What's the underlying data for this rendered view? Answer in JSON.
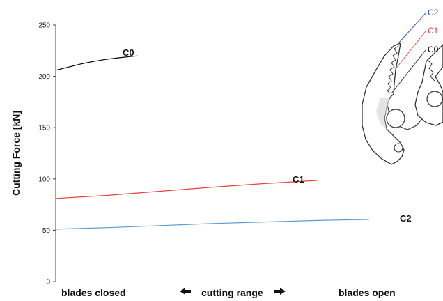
{
  "chart_data": {
    "type": "line",
    "title": "",
    "ylabel": "Cutting Force [kN]",
    "xlabel": "",
    "ylim": [
      0,
      250
    ],
    "yticks": [
      0,
      50,
      100,
      150,
      200,
      250
    ],
    "x_range": [
      0,
      100
    ],
    "grid": false,
    "legend": "none",
    "x_captions": {
      "left": "blades closed",
      "center": "cutting range",
      "right": "blades open"
    },
    "series": [
      {
        "name": "C0",
        "color": "#000000",
        "x": [
          0,
          5,
          10,
          15,
          20,
          25,
          30,
          33
        ],
        "y": [
          206,
          209,
          212,
          214.5,
          216.5,
          218,
          219.3,
          220
        ]
      },
      {
        "name": "C1",
        "color": "#e8403a",
        "x": [
          0,
          20,
          40,
          60,
          80,
          100
        ],
        "y": [
          81,
          84,
          88,
          92,
          95.5,
          98.5
        ]
      },
      {
        "name": "C2",
        "color": "#5b9bd5",
        "x": [
          0,
          20,
          40,
          60,
          80,
          100,
          120
        ],
        "y": [
          51,
          52.5,
          54.5,
          56.5,
          58,
          59.5,
          60.5
        ]
      }
    ]
  },
  "diagram": {
    "labels": [
      {
        "text": "C2",
        "color": "#3355cc"
      },
      {
        "text": "C1",
        "color": "#e8403a"
      },
      {
        "text": "C0",
        "color": "#000000"
      }
    ]
  }
}
